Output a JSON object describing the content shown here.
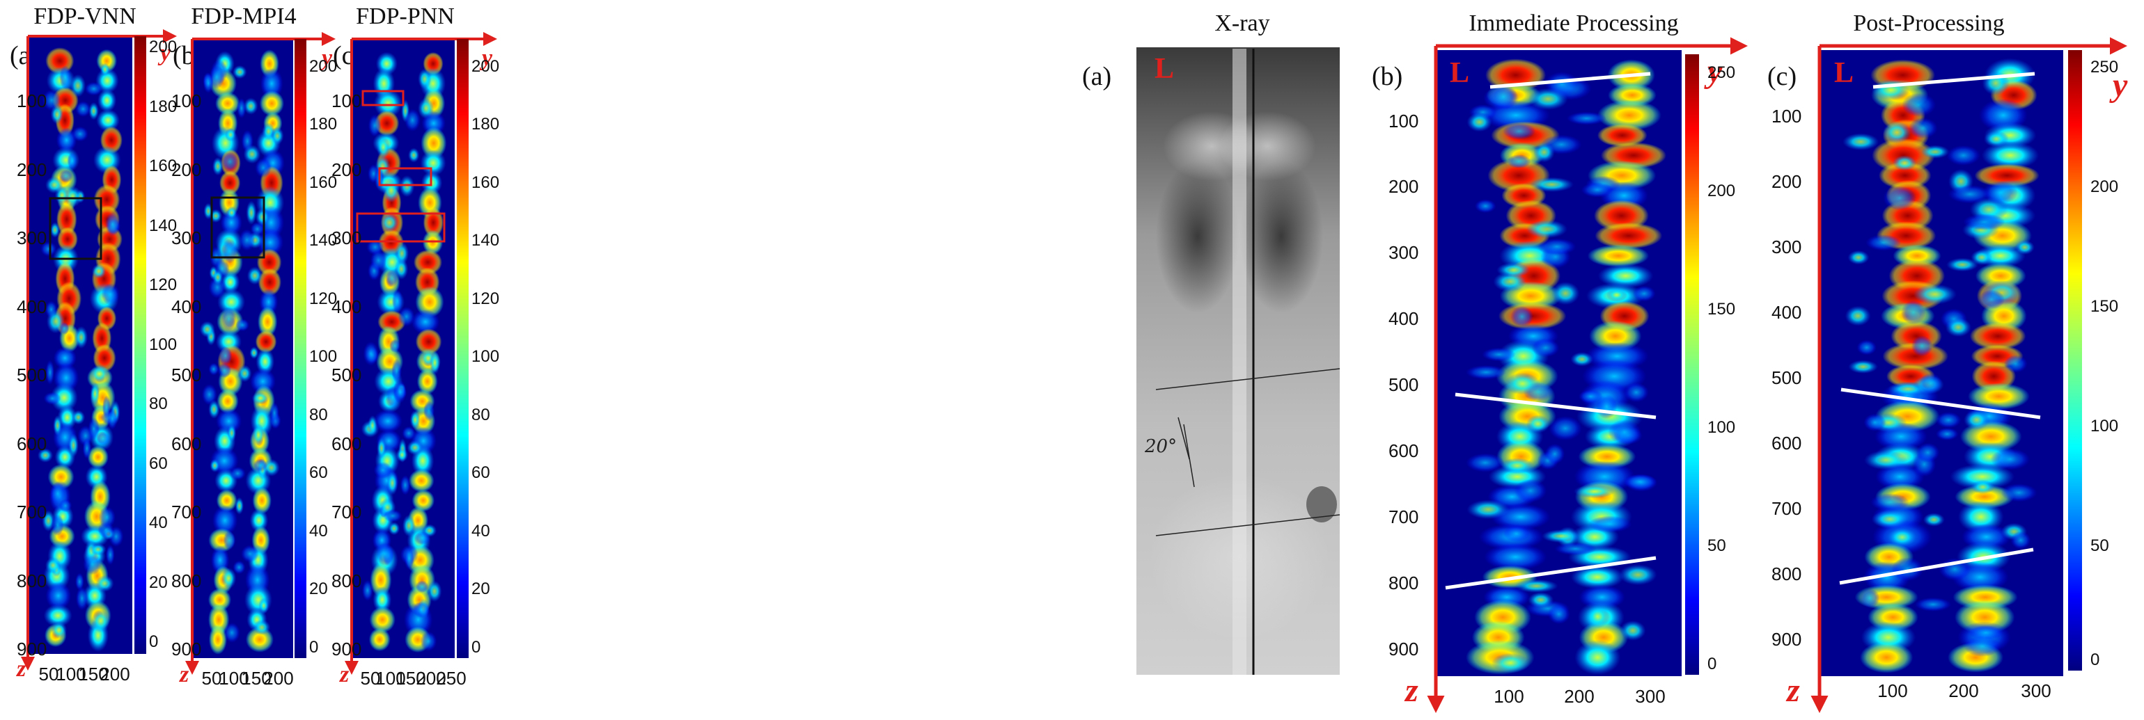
{
  "left_figure": {
    "panels": [
      {
        "label": "(a)",
        "title": "FDP-VNN",
        "y_ticks": [
          "100",
          "200",
          "300",
          "400",
          "500",
          "600",
          "700",
          "800",
          "900"
        ],
        "x_ticks": [
          "50",
          "100",
          "150",
          "200"
        ],
        "colorbar_ticks": [
          "200",
          "180",
          "160",
          "140",
          "120",
          "100",
          "80",
          "60",
          "40",
          "20",
          "0"
        ],
        "axis_y": "y",
        "axis_z": "z",
        "boxes": [
          "black"
        ]
      },
      {
        "label": "(b)",
        "title": "FDP-MPI4",
        "y_ticks": [
          "100",
          "200",
          "300",
          "400",
          "500",
          "600",
          "700",
          "800",
          "900"
        ],
        "x_ticks": [
          "50",
          "100",
          "150",
          "200"
        ],
        "colorbar_ticks": [
          "200",
          "180",
          "160",
          "140",
          "120",
          "100",
          "80",
          "60",
          "40",
          "20",
          "0"
        ],
        "axis_y": "y",
        "axis_z": "z",
        "boxes": [
          "black"
        ]
      },
      {
        "label": "(c)",
        "title": "FDP-PNN",
        "y_ticks": [
          "100",
          "200",
          "300",
          "400",
          "500",
          "600",
          "700",
          "800",
          "900"
        ],
        "x_ticks": [
          "50",
          "100",
          "150",
          "200",
          "250"
        ],
        "colorbar_ticks": [
          "200",
          "180",
          "160",
          "140",
          "120",
          "100",
          "80",
          "60",
          "40",
          "20",
          "0"
        ],
        "axis_y": "y",
        "axis_z": "z",
        "boxes": [
          "red",
          "red",
          "red"
        ]
      }
    ]
  },
  "right_figure": {
    "panels": [
      {
        "label": "(a)",
        "title": "X-ray",
        "marker": "L",
        "handwriting": "20°"
      },
      {
        "label": "(b)",
        "title": "Immediate Processing",
        "marker": "L",
        "y_ticks": [
          "100",
          "200",
          "300",
          "400",
          "500",
          "600",
          "700",
          "800",
          "900"
        ],
        "x_ticks": [
          "100",
          "200",
          "300"
        ],
        "colorbar_ticks": [
          "250",
          "200",
          "150",
          "100",
          "50",
          "0"
        ],
        "axis_y": "y",
        "axis_z": "z"
      },
      {
        "label": "(c)",
        "title": "Post-Processing",
        "marker": "L",
        "y_ticks": [
          "100",
          "200",
          "300",
          "400",
          "500",
          "600",
          "700",
          "800",
          "900"
        ],
        "x_ticks": [
          "100",
          "200",
          "300"
        ],
        "colorbar_ticks": [
          "250",
          "200",
          "150",
          "100",
          "50",
          "0"
        ],
        "axis_y": "y",
        "axis_z": "z"
      }
    ]
  },
  "colors": {
    "axis_red": "#e0201c",
    "background_blue": "#00008f",
    "line_white": "#ffffff"
  }
}
